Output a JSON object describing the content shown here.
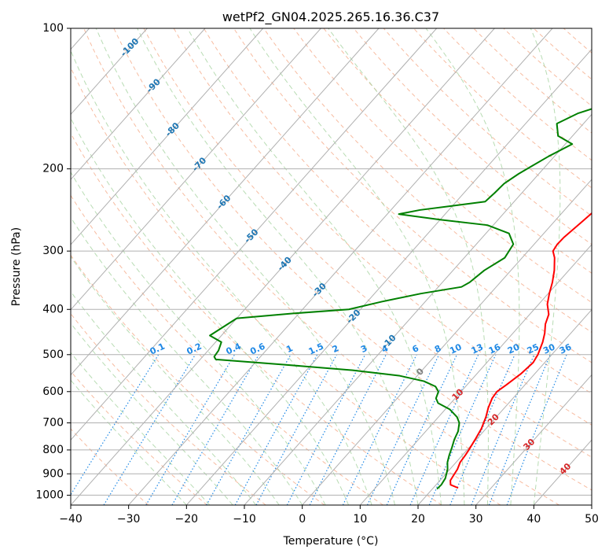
{
  "chart_data": {
    "type": "line",
    "title": "wetPf2_GN04.2025.265.16.36.C37",
    "xlabel": "Temperature (°C)",
    "ylabel": "Pressure (hPa)",
    "xlim": [
      -40,
      50
    ],
    "ylim": [
      1050,
      100
    ],
    "y_scale": "log",
    "grid": true,
    "x_ticks": [
      -40,
      -30,
      -20,
      -10,
      0,
      10,
      20,
      30,
      40,
      50
    ],
    "y_ticks": [
      100,
      200,
      300,
      400,
      500,
      600,
      700,
      800,
      900,
      1000
    ],
    "x_tick_labels": [
      "−40",
      "−30",
      "−20",
      "−10",
      "0",
      "10",
      "20",
      "30",
      "40",
      "50"
    ],
    "y_tick_labels": [
      "100",
      "200",
      "300",
      "400",
      "500",
      "600",
      "700",
      "800",
      "900",
      "1000"
    ],
    "series": [
      {
        "color": "#ff0000",
        "points": [
          [
            24.3,
            965
          ],
          [
            22.5,
            950
          ],
          [
            21.8,
            930
          ],
          [
            21.5,
            900
          ],
          [
            21.3,
            880
          ],
          [
            20.7,
            850
          ],
          [
            20.5,
            820
          ],
          [
            20.3,
            800
          ],
          [
            19.8,
            760
          ],
          [
            19.2,
            720
          ],
          [
            18.2,
            680
          ],
          [
            17.2,
            650
          ],
          [
            16.4,
            620
          ],
          [
            16.2,
            600
          ],
          [
            16.8,
            580
          ],
          [
            17.6,
            550
          ],
          [
            18.0,
            520
          ],
          [
            17.6,
            500
          ],
          [
            16.5,
            470
          ],
          [
            15.5,
            450
          ],
          [
            14.2,
            430
          ],
          [
            13.3,
            410
          ],
          [
            11.5,
            390
          ],
          [
            10.2,
            370
          ],
          [
            9.0,
            350
          ],
          [
            7.5,
            330
          ],
          [
            5.6,
            310
          ],
          [
            4.3,
            300
          ],
          [
            4.0,
            290
          ],
          [
            4.1,
            280
          ],
          [
            4.8,
            260
          ],
          [
            5.5,
            240
          ],
          [
            6.0,
            220
          ],
          [
            6.6,
            205
          ],
          [
            7.0,
            185
          ],
          [
            8.2,
            165
          ],
          [
            8.6,
            155
          ],
          [
            8.5,
            140
          ],
          [
            9.2,
            131
          ],
          [
            10.6,
            127
          ],
          [
            12.5,
            120
          ],
          [
            13.5,
            112
          ],
          [
            14.1,
            106
          ],
          [
            14.5,
            100
          ]
        ]
      },
      {
        "color": "#008000",
        "points": [
          [
            20.8,
            970
          ],
          [
            20.9,
            950
          ],
          [
            20.6,
            920
          ],
          [
            19.6,
            880
          ],
          [
            18.5,
            850
          ],
          [
            17.7,
            820
          ],
          [
            17.0,
            790
          ],
          [
            16.2,
            760
          ],
          [
            15.6,
            730
          ],
          [
            14.5,
            700
          ],
          [
            13.2,
            680
          ],
          [
            10.8,
            655
          ],
          [
            7.8,
            635
          ],
          [
            6.7,
            620
          ],
          [
            6.1,
            600
          ],
          [
            4.8,
            585
          ],
          [
            2.0,
            570
          ],
          [
            -3.0,
            555
          ],
          [
            -12.0,
            540
          ],
          [
            -25.0,
            525
          ],
          [
            -37.3,
            512
          ],
          [
            -38.0,
            505
          ],
          [
            -38.2,
            490
          ],
          [
            -39.0,
            470
          ],
          [
            -42.0,
            455
          ],
          [
            -40.0,
            418
          ],
          [
            -31.0,
            408
          ],
          [
            -22.0,
            400
          ],
          [
            -17.5,
            385
          ],
          [
            -12.0,
            370
          ],
          [
            -6.0,
            358
          ],
          [
            -5.3,
            350
          ],
          [
            -4.6,
            330
          ],
          [
            -3.0,
            310
          ],
          [
            -3.6,
            290
          ],
          [
            -6.0,
            275
          ],
          [
            -11.0,
            264
          ],
          [
            -20.0,
            257
          ],
          [
            -28.0,
            250
          ],
          [
            -25.0,
            245
          ],
          [
            -20.0,
            240
          ],
          [
            -15.0,
            235
          ],
          [
            -14.7,
            225
          ],
          [
            -14.5,
            215
          ],
          [
            -13.5,
            205
          ],
          [
            -12.5,
            198
          ],
          [
            -11.0,
            188
          ],
          [
            -8.8,
            177
          ],
          [
            -12.5,
            170
          ],
          [
            -14.6,
            160
          ],
          [
            -12.5,
            152
          ],
          [
            -8.8,
            145
          ],
          [
            -3.0,
            140
          ],
          [
            -3.0,
            130
          ],
          [
            -2.6,
            118
          ],
          [
            -1.7,
            112
          ],
          [
            -0.5,
            108
          ],
          [
            1.0,
            104
          ],
          [
            3.0,
            100
          ]
        ]
      }
    ],
    "isotherm_labels": [
      "-100",
      "-90",
      "-80",
      "-70",
      "-60",
      "-50",
      "-40",
      "-30",
      "-20",
      "-10"
    ],
    "mixing_ratio_labels": [
      "0.1",
      "0.2",
      "0.4",
      "0.6",
      "1",
      "1.5",
      "2",
      "3",
      "4",
      "6",
      "8",
      "10",
      "13",
      "16",
      "20",
      "25",
      "30",
      "36"
    ],
    "red_labels": [
      "0",
      "10",
      "20",
      "30",
      "40"
    ]
  }
}
